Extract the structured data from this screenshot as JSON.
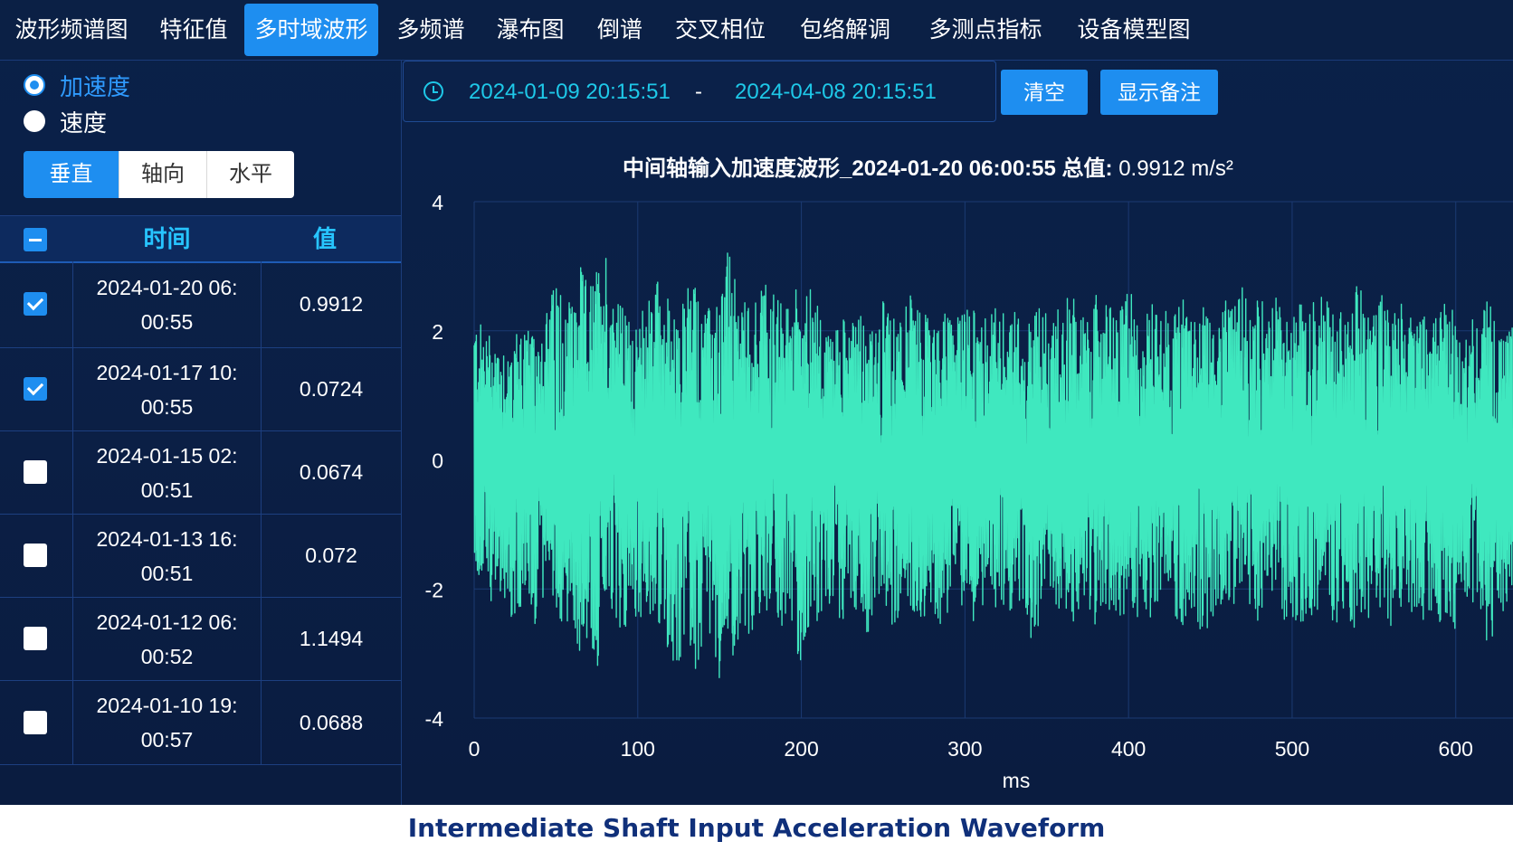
{
  "nav": {
    "tabs": [
      {
        "label": "波形频谱图"
      },
      {
        "label": "特征值"
      },
      {
        "label": "多时域波形",
        "active": true
      },
      {
        "label": "多频谱"
      },
      {
        "label": "瀑布图"
      },
      {
        "label": "倒谱"
      },
      {
        "label": "交叉相位"
      },
      {
        "label": "包络解调"
      },
      {
        "label": "多测点指标"
      },
      {
        "label": "设备模型图"
      }
    ]
  },
  "left": {
    "radios": [
      {
        "label": "加速度",
        "checked": true
      },
      {
        "label": "速度",
        "checked": false
      }
    ],
    "directions": [
      {
        "label": "垂直",
        "active": true
      },
      {
        "label": "轴向",
        "active": false
      },
      {
        "label": "水平",
        "active": false
      }
    ],
    "table": {
      "headers": {
        "time": "时间",
        "value": "值"
      },
      "rows": [
        {
          "time_line1": "2024-01-20 06:",
          "time_line2": "00:55",
          "value": "0.9912",
          "checked": true
        },
        {
          "time_line1": "2024-01-17 10:",
          "time_line2": "00:55",
          "value": "0.0724",
          "checked": true
        },
        {
          "time_line1": "2024-01-15 02:",
          "time_line2": "00:51",
          "value": "0.0674",
          "checked": false
        },
        {
          "time_line1": "2024-01-13 16:",
          "time_line2": "00:51",
          "value": "0.072",
          "checked": false
        },
        {
          "time_line1": "2024-01-12 06:",
          "time_line2": "00:52",
          "value": "1.1494",
          "checked": false
        },
        {
          "time_line1": "2024-01-10 19:",
          "time_line2": "00:57",
          "value": "0.0688",
          "checked": false
        }
      ]
    }
  },
  "toolbar": {
    "date_start": "2024-01-09 20:15:51",
    "date_separator": "-",
    "date_end": "2024-04-08 20:15:51",
    "clear_label": "清空",
    "notes_label": "显示备注"
  },
  "chart_data": {
    "type": "line",
    "title": "中间轴输入加速度波形_2024-01-20 06:00:55 总值:",
    "title_value": "0.9912 m/s²",
    "xlabel": "ms",
    "ylabel": "",
    "xlim": [
      0,
      635
    ],
    "ylim": [
      -4,
      4
    ],
    "x_ticks": [
      "0",
      "100",
      "200",
      "300",
      "400",
      "500",
      "600"
    ],
    "y_ticks": [
      "4",
      "2",
      "0",
      "-2",
      "-4"
    ],
    "series": [
      {
        "color": "#3fe8bf",
        "envelope": {
          "x": [
            0,
            5,
            10,
            15,
            20,
            25,
            30,
            35,
            40,
            45,
            50,
            55,
            60,
            65,
            70,
            75,
            80,
            85,
            90,
            95,
            100,
            105,
            110,
            115,
            120,
            125,
            130,
            135,
            140,
            145,
            150,
            155,
            160,
            165,
            170,
            175,
            180,
            185,
            190,
            195,
            200,
            205,
            210,
            215,
            220,
            225,
            230,
            235,
            240,
            245,
            250,
            255,
            260,
            265,
            270,
            275,
            280,
            285,
            290,
            295,
            300,
            305,
            310,
            315,
            320,
            325,
            330,
            335,
            340,
            345,
            350,
            355,
            360,
            365,
            370,
            375,
            380,
            385,
            390,
            395,
            400,
            405,
            410,
            415,
            420,
            425,
            430,
            435,
            440,
            445,
            450,
            455,
            460,
            465,
            470,
            475,
            480,
            485,
            490,
            495,
            500,
            505,
            510,
            515,
            520,
            525,
            530,
            535,
            540,
            545,
            550,
            555,
            560,
            565,
            570,
            575,
            580,
            585,
            590,
            595,
            600,
            605,
            610,
            615,
            620,
            625,
            630,
            635
          ],
          "max": [
            2.2,
            2.1,
            2.0,
            1.9,
            1.8,
            2.0,
            2.2,
            1.9,
            2.1,
            2.4,
            2.8,
            2.9,
            2.5,
            3.0,
            2.7,
            3.0,
            3.4,
            2.7,
            2.4,
            2.2,
            2.0,
            2.6,
            2.9,
            2.8,
            2.4,
            2.0,
            3.0,
            2.8,
            2.5,
            2.3,
            2.5,
            3.4,
            2.7,
            2.5,
            2.4,
            2.8,
            2.8,
            2.6,
            2.3,
            2.8,
            2.6,
            2.7,
            2.4,
            2.0,
            2.1,
            2.5,
            2.4,
            2.5,
            2.1,
            2.0,
            2.5,
            2.2,
            2.3,
            2.7,
            2.3,
            2.5,
            2.0,
            2.2,
            2.4,
            2.3,
            2.3,
            2.5,
            2.3,
            2.2,
            2.5,
            2.2,
            2.4,
            2.1,
            2.4,
            2.5,
            2.3,
            2.4,
            2.4,
            2.7,
            2.3,
            2.2,
            2.6,
            2.4,
            2.5,
            2.3,
            2.8,
            2.4,
            2.2,
            2.5,
            2.5,
            2.2,
            2.4,
            2.7,
            2.3,
            2.6,
            2.3,
            2.2,
            2.5,
            2.4,
            2.7,
            2.3,
            2.6,
            2.3,
            2.6,
            2.2,
            2.4,
            2.5,
            2.3,
            2.6,
            2.7,
            2.4,
            2.3,
            2.2,
            2.8,
            2.5,
            2.3,
            2.7,
            2.4,
            2.4,
            2.7,
            2.4,
            2.3,
            2.2,
            2.5,
            2.4,
            2.3,
            2.6,
            2.2,
            2.0,
            2.7,
            2.1,
            1.9,
            2.2
          ],
          "min": [
            -1.8,
            -1.9,
            -2.2,
            -2.0,
            -2.3,
            -2.7,
            -2.4,
            -2.5,
            -2.6,
            -2.0,
            -2.3,
            -2.7,
            -2.5,
            -3.2,
            -2.8,
            -3.3,
            -2.6,
            -2.5,
            -2.9,
            -2.5,
            -2.4,
            -2.6,
            -2.4,
            -2.8,
            -3.1,
            -3.3,
            -2.5,
            -3.6,
            -2.8,
            -2.7,
            -3.4,
            -2.6,
            -3.3,
            -2.6,
            -2.8,
            -2.6,
            -2.3,
            -2.4,
            -2.8,
            -2.7,
            -3.3,
            -2.6,
            -2.5,
            -2.6,
            -2.4,
            -2.5,
            -2.4,
            -2.3,
            -2.8,
            -2.4,
            -2.3,
            -2.6,
            -2.5,
            -2.2,
            -2.4,
            -2.5,
            -2.3,
            -2.6,
            -2.4,
            -2.3,
            -2.3,
            -2.5,
            -2.2,
            -2.6,
            -2.4,
            -2.3,
            -2.4,
            -2.2,
            -2.8,
            -2.6,
            -2.4,
            -2.3,
            -2.3,
            -2.6,
            -2.4,
            -2.2,
            -2.6,
            -2.3,
            -2.4,
            -2.5,
            -2.3,
            -2.5,
            -2.4,
            -2.6,
            -2.4,
            -2.2,
            -2.5,
            -2.6,
            -2.3,
            -2.8,
            -2.5,
            -2.4,
            -2.3,
            -2.4,
            -2.2,
            -2.5,
            -2.6,
            -2.4,
            -2.3,
            -2.5,
            -2.4,
            -2.7,
            -2.5,
            -2.4,
            -2.4,
            -2.5,
            -2.6,
            -2.5,
            -2.8,
            -2.5,
            -2.4,
            -2.4,
            -2.6,
            -2.3,
            -2.8,
            -2.3,
            -2.5,
            -2.4,
            -2.6,
            -2.4,
            -2.7,
            -2.5,
            -2.2,
            -2.4,
            -3.0,
            -2.6,
            -2.5,
            -2.3
          ]
        }
      }
    ],
    "grid": true,
    "legend": "none"
  },
  "caption": "Intermediate Shaft Input Acceleration Waveform"
}
